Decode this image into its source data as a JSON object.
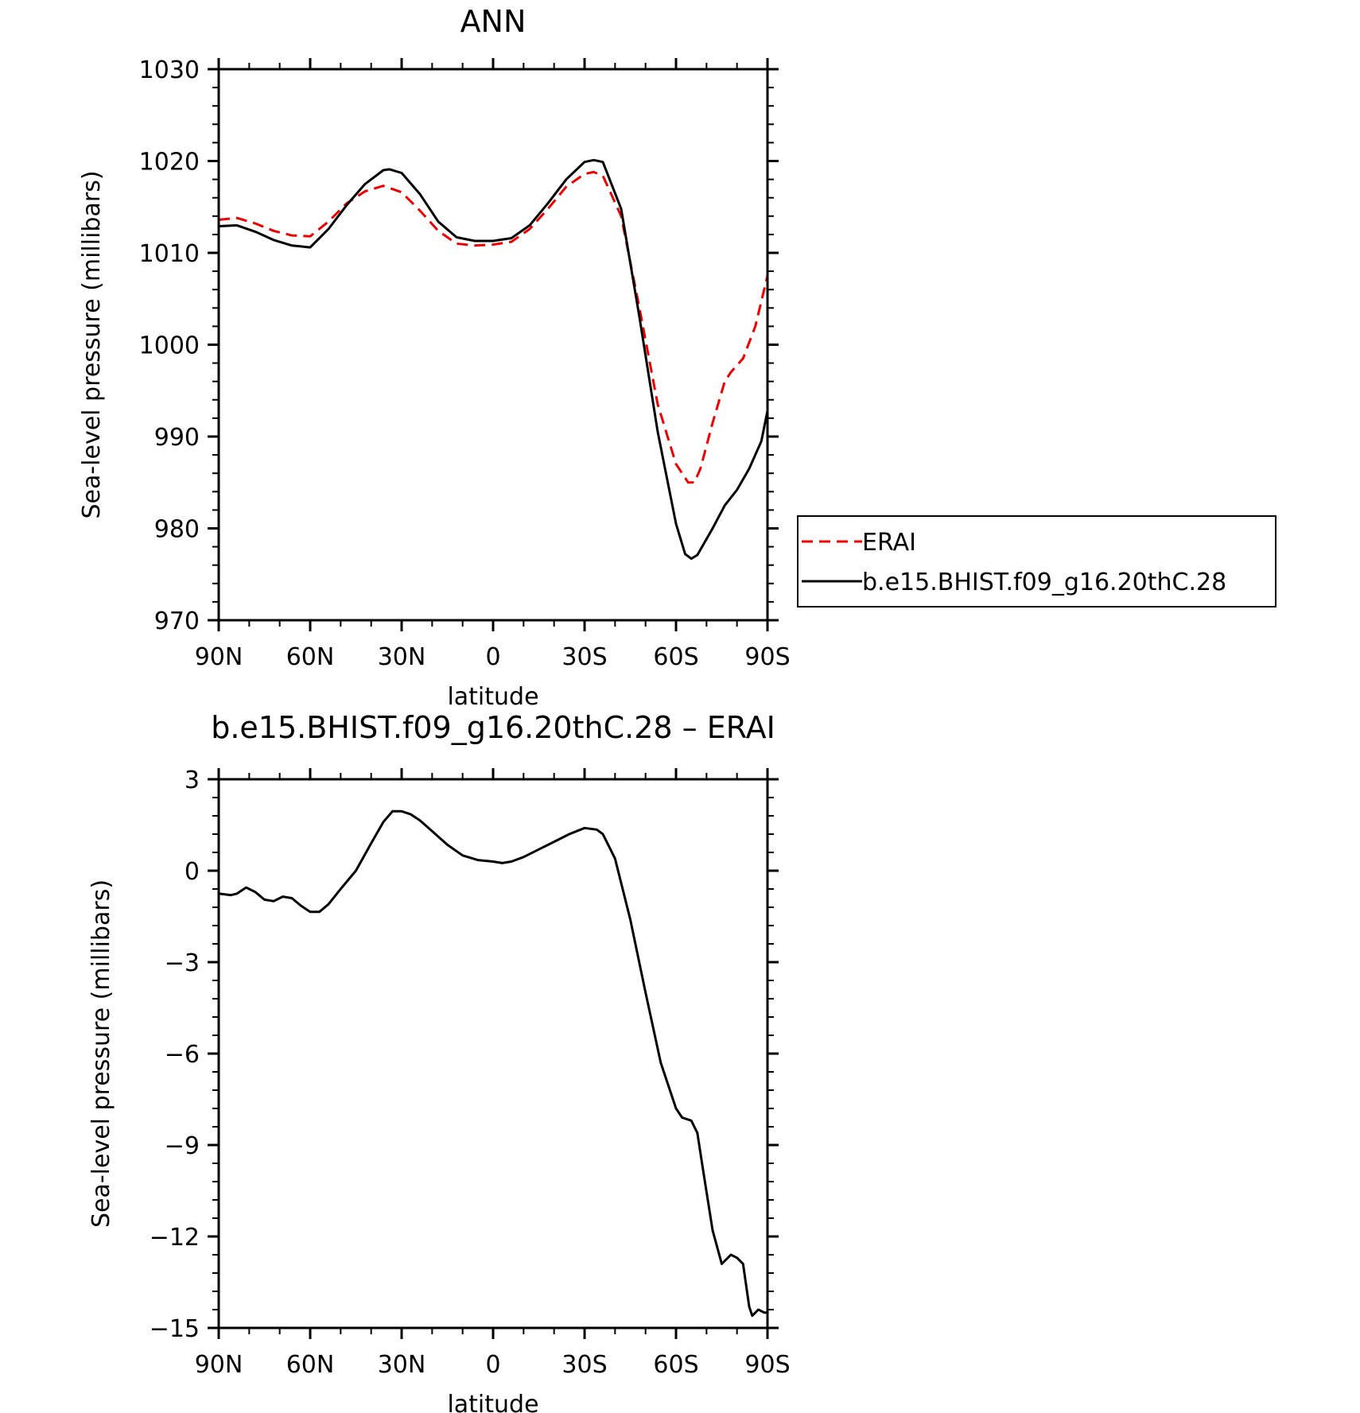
{
  "chart_data": [
    {
      "type": "line",
      "title": "ANN",
      "xlabel": "latitude",
      "ylabel": "Sea-level pressure (millibars)",
      "xlim": [
        90,
        -90
      ],
      "ylim": [
        970,
        1030
      ],
      "x_ticks": [
        {
          "value": 90,
          "label": "90N"
        },
        {
          "value": 60,
          "label": "60N"
        },
        {
          "value": 30,
          "label": "30N"
        },
        {
          "value": 0,
          "label": "0"
        },
        {
          "value": -30,
          "label": "30S"
        },
        {
          "value": -60,
          "label": "60S"
        },
        {
          "value": -90,
          "label": "90S"
        }
      ],
      "y_ticks": [
        {
          "value": 1030,
          "label": "1030"
        },
        {
          "value": 1020,
          "label": "1020"
        },
        {
          "value": 1010,
          "label": "1010"
        },
        {
          "value": 1000,
          "label": "1000"
        },
        {
          "value": 990,
          "label": "990"
        },
        {
          "value": 980,
          "label": "980"
        },
        {
          "value": 970,
          "label": "970"
        }
      ],
      "legend": {
        "placement": "right"
      },
      "series": [
        {
          "name": "ERAI",
          "color": "#ee0000",
          "dash": true,
          "x": [
            90,
            84,
            78,
            72,
            66,
            60,
            54,
            48,
            42,
            36,
            30,
            24,
            18,
            12,
            6,
            0,
            -6,
            -12,
            -18,
            -24,
            -30,
            -33,
            -36,
            -42,
            -48,
            -54,
            -60,
            -64,
            -66,
            -68,
            -72,
            -76,
            -78,
            -82,
            -86,
            -90
          ],
          "y": [
            1013.6,
            1013.8,
            1013.2,
            1012.4,
            1011.9,
            1011.8,
            1013.4,
            1015.4,
            1016.7,
            1017.3,
            1016.6,
            1014.6,
            1012.4,
            1011.0,
            1010.8,
            1010.9,
            1011.2,
            1012.6,
            1014.8,
            1017.2,
            1018.6,
            1018.8,
            1018.4,
            1014.0,
            1004.0,
            993.5,
            987.0,
            985.0,
            985.0,
            986.5,
            991.5,
            996.0,
            997.0,
            998.5,
            1002.0,
            1007.5
          ]
        },
        {
          "name": "b.e15.BHIST.f09_g16.20thC.28",
          "color": "#000000",
          "dash": false,
          "x": [
            90,
            84,
            78,
            72,
            66,
            60,
            54,
            48,
            42,
            36,
            34,
            30,
            24,
            18,
            12,
            6,
            0,
            -6,
            -12,
            -18,
            -24,
            -30,
            -33,
            -36,
            -42,
            -48,
            -54,
            -60,
            -63,
            -65,
            -67,
            -72,
            -76,
            -80,
            -84,
            -88,
            -90
          ],
          "y": [
            1012.9,
            1013.0,
            1012.3,
            1011.4,
            1010.8,
            1010.6,
            1012.6,
            1015.2,
            1017.5,
            1019.0,
            1019.1,
            1018.7,
            1016.4,
            1013.4,
            1011.7,
            1011.3,
            1011.3,
            1011.6,
            1013.0,
            1015.4,
            1018.0,
            1019.9,
            1020.1,
            1019.9,
            1014.8,
            1003.0,
            990.5,
            980.5,
            977.2,
            976.7,
            977.1,
            980.0,
            982.5,
            984.2,
            986.5,
            989.5,
            992.8
          ]
        }
      ]
    },
    {
      "type": "line",
      "title": "b.e15.BHIST.f09_g16.20thC.28 – ERAI",
      "xlabel": "latitude",
      "ylabel": "Sea-level pressure (millibars)",
      "xlim": [
        90,
        -90
      ],
      "ylim": [
        -15,
        3
      ],
      "x_ticks": [
        {
          "value": 90,
          "label": "90N"
        },
        {
          "value": 60,
          "label": "60N"
        },
        {
          "value": 30,
          "label": "30N"
        },
        {
          "value": 0,
          "label": "0"
        },
        {
          "value": -30,
          "label": "30S"
        },
        {
          "value": -60,
          "label": "60S"
        },
        {
          "value": -90,
          "label": "90S"
        }
      ],
      "y_ticks": [
        {
          "value": 3,
          "label": "3"
        },
        {
          "value": 0,
          "label": "0"
        },
        {
          "value": -3,
          "label": "−3"
        },
        {
          "value": -6,
          "label": "−6"
        },
        {
          "value": -9,
          "label": "−9"
        },
        {
          "value": -12,
          "label": "−12"
        },
        {
          "value": -15,
          "label": "−15"
        }
      ],
      "series": [
        {
          "color": "#000000",
          "dash": false,
          "x": [
            90,
            86,
            84,
            81,
            78,
            75,
            72,
            69,
            66,
            63,
            60,
            57,
            54,
            50,
            45,
            40,
            36,
            33,
            30,
            27,
            24,
            20,
            15,
            10,
            5,
            0,
            -3,
            -6,
            -10,
            -15,
            -20,
            -25,
            -30,
            -34,
            -36,
            -40,
            -45,
            -50,
            -55,
            -60,
            -62,
            -65,
            -67,
            -69,
            -72,
            -75,
            -78,
            -80,
            -82,
            -84,
            -85,
            -87,
            -89,
            -90
          ],
          "y": [
            -0.75,
            -0.8,
            -0.75,
            -0.55,
            -0.7,
            -0.95,
            -1.0,
            -0.85,
            -0.9,
            -1.15,
            -1.35,
            -1.35,
            -1.1,
            -0.6,
            0.0,
            0.9,
            1.6,
            1.95,
            1.95,
            1.85,
            1.65,
            1.3,
            0.85,
            0.5,
            0.35,
            0.3,
            0.25,
            0.3,
            0.45,
            0.7,
            0.95,
            1.2,
            1.4,
            1.35,
            1.2,
            0.4,
            -1.6,
            -4.0,
            -6.3,
            -7.8,
            -8.1,
            -8.2,
            -8.6,
            -9.9,
            -11.8,
            -12.9,
            -12.6,
            -12.7,
            -12.9,
            -14.3,
            -14.6,
            -14.4,
            -14.5,
            -14.5
          ]
        }
      ]
    }
  ]
}
